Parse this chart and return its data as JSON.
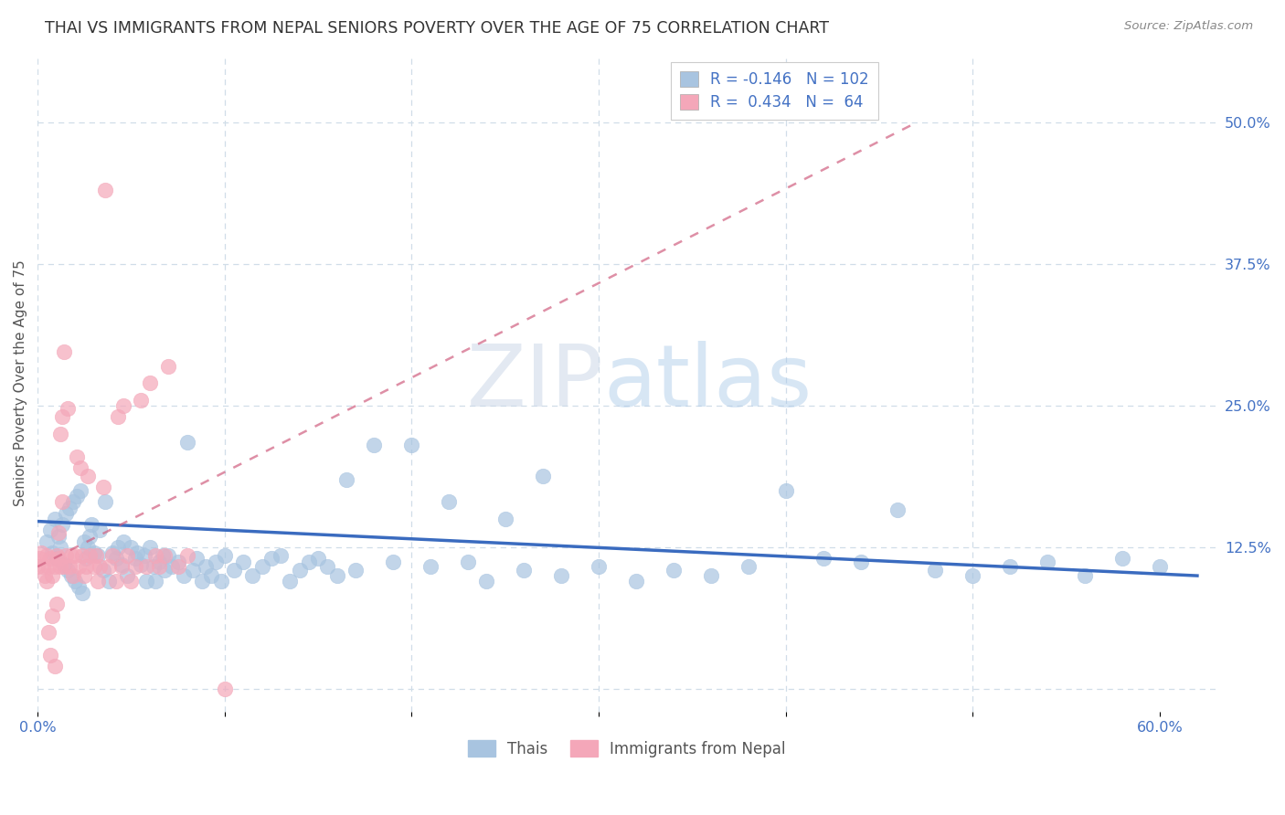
{
  "title": "THAI VS IMMIGRANTS FROM NEPAL SENIORS POVERTY OVER THE AGE OF 75 CORRELATION CHART",
  "source": "Source: ZipAtlas.com",
  "ylabel": "Seniors Poverty Over the Age of 75",
  "xlim": [
    0.0,
    0.63
  ],
  "ylim": [
    -0.02,
    0.56
  ],
  "thai_R": -0.146,
  "thai_N": 102,
  "nepal_R": 0.434,
  "nepal_N": 64,
  "thai_color": "#a8c4e0",
  "nepal_color": "#f4a7b9",
  "thai_line_color": "#3a6bbf",
  "nepal_line_color": "#d06080",
  "background_color": "#ffffff",
  "legend_label_thai": "Thais",
  "legend_label_nepal": "Immigrants from Nepal",
  "grid_color": "#d0dde8",
  "title_fontsize": 12.5,
  "tick_fontsize": 11.5,
  "thai_x": [
    0.005,
    0.007,
    0.008,
    0.009,
    0.01,
    0.011,
    0.012,
    0.013,
    0.014,
    0.015,
    0.016,
    0.017,
    0.018,
    0.019,
    0.02,
    0.021,
    0.022,
    0.023,
    0.024,
    0.025,
    0.026,
    0.027,
    0.028,
    0.029,
    0.03,
    0.032,
    0.033,
    0.035,
    0.036,
    0.038,
    0.04,
    0.042,
    0.043,
    0.045,
    0.046,
    0.048,
    0.05,
    0.052,
    0.053,
    0.055,
    0.057,
    0.058,
    0.06,
    0.062,
    0.063,
    0.065,
    0.067,
    0.068,
    0.07,
    0.072,
    0.075,
    0.078,
    0.08,
    0.083,
    0.085,
    0.088,
    0.09,
    0.093,
    0.095,
    0.098,
    0.1,
    0.105,
    0.11,
    0.115,
    0.12,
    0.125,
    0.13,
    0.135,
    0.14,
    0.145,
    0.15,
    0.155,
    0.16,
    0.165,
    0.17,
    0.18,
    0.19,
    0.2,
    0.21,
    0.22,
    0.23,
    0.24,
    0.25,
    0.26,
    0.27,
    0.28,
    0.3,
    0.32,
    0.34,
    0.36,
    0.38,
    0.4,
    0.42,
    0.44,
    0.46,
    0.48,
    0.5,
    0.52,
    0.54,
    0.56,
    0.58,
    0.6
  ],
  "thai_y": [
    0.13,
    0.14,
    0.12,
    0.15,
    0.115,
    0.135,
    0.125,
    0.145,
    0.11,
    0.155,
    0.105,
    0.16,
    0.1,
    0.165,
    0.095,
    0.17,
    0.09,
    0.175,
    0.085,
    0.13,
    0.115,
    0.125,
    0.135,
    0.145,
    0.12,
    0.118,
    0.14,
    0.105,
    0.165,
    0.095,
    0.12,
    0.115,
    0.125,
    0.11,
    0.13,
    0.1,
    0.125,
    0.115,
    0.12,
    0.11,
    0.118,
    0.095,
    0.125,
    0.108,
    0.095,
    0.112,
    0.118,
    0.105,
    0.118,
    0.108,
    0.112,
    0.1,
    0.218,
    0.105,
    0.115,
    0.095,
    0.108,
    0.1,
    0.112,
    0.095,
    0.118,
    0.105,
    0.112,
    0.1,
    0.108,
    0.115,
    0.118,
    0.095,
    0.105,
    0.112,
    0.115,
    0.108,
    0.1,
    0.185,
    0.105,
    0.215,
    0.112,
    0.215,
    0.108,
    0.165,
    0.112,
    0.095,
    0.15,
    0.105,
    0.188,
    0.1,
    0.108,
    0.095,
    0.105,
    0.1,
    0.108,
    0.175,
    0.115,
    0.112,
    0.158,
    0.105,
    0.1,
    0.108,
    0.112,
    0.1,
    0.115,
    0.108
  ],
  "nepal_x": [
    0.0,
    0.001,
    0.002,
    0.003,
    0.004,
    0.005,
    0.005,
    0.006,
    0.006,
    0.007,
    0.007,
    0.008,
    0.008,
    0.009,
    0.009,
    0.01,
    0.01,
    0.011,
    0.011,
    0.012,
    0.012,
    0.013,
    0.013,
    0.014,
    0.014,
    0.015,
    0.016,
    0.017,
    0.018,
    0.019,
    0.02,
    0.021,
    0.022,
    0.023,
    0.024,
    0.025,
    0.026,
    0.027,
    0.028,
    0.03,
    0.031,
    0.032,
    0.033,
    0.035,
    0.036,
    0.038,
    0.04,
    0.042,
    0.043,
    0.045,
    0.046,
    0.048,
    0.05,
    0.052,
    0.055,
    0.058,
    0.06,
    0.063,
    0.065,
    0.068,
    0.07,
    0.075,
    0.08,
    0.1
  ],
  "nepal_y": [
    0.108,
    0.115,
    0.12,
    0.108,
    0.1,
    0.118,
    0.095,
    0.108,
    0.05,
    0.115,
    0.03,
    0.1,
    0.065,
    0.108,
    0.02,
    0.118,
    0.075,
    0.115,
    0.138,
    0.108,
    0.225,
    0.24,
    0.165,
    0.108,
    0.298,
    0.118,
    0.248,
    0.108,
    0.118,
    0.1,
    0.118,
    0.205,
    0.108,
    0.195,
    0.118,
    0.1,
    0.108,
    0.188,
    0.118,
    0.108,
    0.118,
    0.095,
    0.108,
    0.178,
    0.44,
    0.108,
    0.118,
    0.095,
    0.24,
    0.108,
    0.25,
    0.118,
    0.095,
    0.108,
    0.255,
    0.108,
    0.27,
    0.118,
    0.108,
    0.118,
    0.285,
    0.108,
    0.118,
    0.0
  ],
  "nepal_trend_x0": 0.0,
  "nepal_trend_x1": 0.47,
  "nepal_trend_y0": 0.108,
  "nepal_trend_y1": 0.5,
  "thai_trend_x0": 0.0,
  "thai_trend_x1": 0.62,
  "thai_trend_y0": 0.148,
  "thai_trend_y1": 0.1
}
